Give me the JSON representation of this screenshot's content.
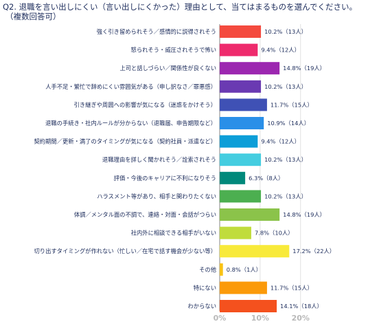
{
  "header": {
    "title": "Q2. 退職を言い出しにくい（言い出しにくかった）理由として、当てはまるものを選んでください。",
    "subtitle": "（複数回答可）"
  },
  "chart_data": {
    "type": "bar",
    "orientation": "horizontal",
    "title": "Q2. 退職を言い出しにくい（言い出しにくかった）理由として、当てはまるものを選んでください。",
    "subtitle": "（複数回答可）",
    "categories": [
      "強く引き留められそう／感情的に説得されそう",
      "怒られそう・威圧されそうで怖い",
      "上司と話しづらい／関係性が良くない",
      "人手不足・繁忙で辞めにくい雰囲気がある（申し訳なさ／罪悪感）",
      "引き継ぎや周囲への影響が気になる（迷惑をかけそう）",
      "退職の手続き・社内ルールが分からない（退職届、申告期限など）",
      "契約期間／更新・満了のタイミングが気になる（契約社員・派遣など）",
      "退職理由を詳しく聞かれそう／詮索されそう",
      "評価・今後のキャリアに不利になりそう",
      "ハラスメント等があり、相手と関わりたくない",
      "体調／メンタル面の不調で、連絡・対面・会話がつらい",
      "社内外に相談できる相手がいない",
      "切り出すタイミングが作れない（忙しい／在宅で話す機会が少ない等）",
      "その他",
      "特にない",
      "わからない"
    ],
    "values": [
      10.2,
      9.4,
      14.8,
      10.2,
      11.7,
      10.9,
      9.4,
      10.2,
      6.3,
      10.2,
      14.8,
      7.8,
      17.2,
      0.8,
      11.7,
      14.1
    ],
    "data_labels": [
      "10.2%（13人）",
      "9.4%（12人）",
      "14.8%（19人）",
      "10.2%（13人）",
      "11.7%（15人）",
      "10.9%（14人）",
      "9.4%（12人）",
      "10.2%（13人）",
      "6.3%（8人）",
      "10.2%（13人）",
      "14.8%（19人）",
      "7.8%（10人）",
      "17.2%（22人）",
      "0.8%（1人）",
      "11.7%（15人）",
      "14.1%（18人）"
    ],
    "colors": [
      "#f44a3e",
      "#ee2a6c",
      "#9c27b0",
      "#6a3ab2",
      "#3f51b5",
      "#2a8fe8",
      "#0c9ed8",
      "#44cde0",
      "#00897b",
      "#4caf50",
      "#8bc34a",
      "#c0dc3c",
      "#f8ea3a",
      "#f9c215",
      "#fb9a0a",
      "#f4511e"
    ],
    "x_ticks": [
      "0%",
      "10%",
      "20%"
    ],
    "xlim": [
      0,
      20
    ],
    "grid": true,
    "legend": "none"
  }
}
